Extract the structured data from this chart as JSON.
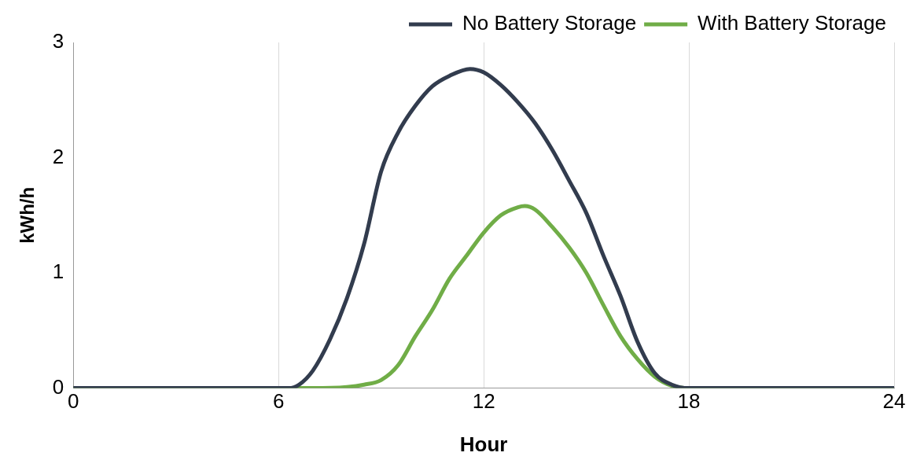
{
  "chart_data": {
    "type": "line",
    "xlabel": "Hour",
    "ylabel": "kWh/h",
    "xlim": [
      0,
      24
    ],
    "xticks": [
      0,
      6,
      12,
      18,
      24
    ],
    "ylim": [
      0,
      3
    ],
    "yticks": [
      0,
      1,
      2,
      3
    ],
    "grid": "x",
    "legend": "top right",
    "marker": "none",
    "line_style": "solid",
    "series": [
      {
        "name": "No Battery Storage",
        "color": "#323c4e",
        "x": [
          0,
          6,
          6.3,
          6.6,
          7,
          7.5,
          8,
          8.5,
          9,
          9.5,
          10,
          10.5,
          11,
          11.6,
          12,
          12.5,
          13,
          13.5,
          14,
          14.5,
          15,
          15.5,
          16,
          16.5,
          17,
          17.5,
          18,
          24
        ],
        "values": [
          0,
          0,
          0,
          0.03,
          0.15,
          0.42,
          0.78,
          1.25,
          1.88,
          2.22,
          2.45,
          2.62,
          2.71,
          2.77,
          2.74,
          2.63,
          2.48,
          2.3,
          2.07,
          1.8,
          1.52,
          1.15,
          0.8,
          0.4,
          0.13,
          0.03,
          0,
          0
        ]
      },
      {
        "name": "With Battery Storage",
        "color": "#70ad47",
        "x": [
          0,
          7,
          8,
          8.5,
          9,
          9.5,
          10,
          10.5,
          11,
          11.5,
          12,
          12.5,
          13,
          13.2,
          13.5,
          14,
          14.5,
          15,
          15.5,
          16,
          16.5,
          17,
          17.5,
          18,
          24
        ],
        "values": [
          0,
          0,
          0.01,
          0.03,
          0.07,
          0.2,
          0.45,
          0.68,
          0.95,
          1.15,
          1.35,
          1.5,
          1.57,
          1.58,
          1.55,
          1.4,
          1.22,
          1.0,
          0.72,
          0.45,
          0.25,
          0.1,
          0.02,
          0,
          0
        ]
      }
    ]
  }
}
